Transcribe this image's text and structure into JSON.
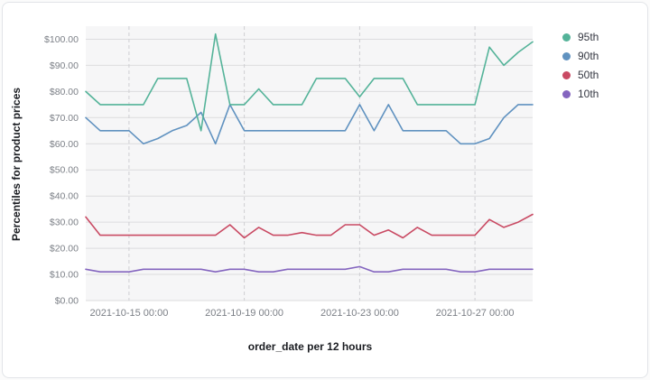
{
  "chart_data": {
    "type": "line",
    "title": "",
    "ylabel": "Percentiles for product prices",
    "xlabel": "order_date per 12 hours",
    "ylim": [
      0,
      105
    ],
    "x_count": 32,
    "x_interval": "12 hours",
    "grid": true,
    "legend_position": "right",
    "plot_bg": "#f6f6f7",
    "grid_color_h": "#dcdcde",
    "grid_color_v": "#cfcfd3",
    "y_ticks": [
      {
        "value": 0,
        "label": "$0.00"
      },
      {
        "value": 10,
        "label": "$10.00"
      },
      {
        "value": 20,
        "label": "$20.00"
      },
      {
        "value": 30,
        "label": "$30.00"
      },
      {
        "value": 40,
        "label": "$40.00"
      },
      {
        "value": 50,
        "label": "$50.00"
      },
      {
        "value": 60,
        "label": "$60.00"
      },
      {
        "value": 70,
        "label": "$70.00"
      },
      {
        "value": 80,
        "label": "$80.00"
      },
      {
        "value": 90,
        "label": "$90.00"
      },
      {
        "value": 100,
        "label": "$100.00"
      }
    ],
    "x_ticks": [
      {
        "index": 3,
        "label": "2021-10-15 00:00"
      },
      {
        "index": 11,
        "label": "2021-10-19 00:00"
      },
      {
        "index": 19,
        "label": "2021-10-23 00:00"
      },
      {
        "index": 27,
        "label": "2021-10-27 00:00"
      }
    ],
    "series": [
      {
        "name": "95th",
        "color": "#54B399",
        "values": [
          80,
          75,
          75,
          75,
          75,
          85,
          85,
          85,
          65,
          102,
          75,
          75,
          81,
          75,
          75,
          75,
          85,
          85,
          85,
          78,
          85,
          85,
          85,
          75,
          75,
          75,
          75,
          75,
          97,
          90,
          95,
          99
        ]
      },
      {
        "name": "90th",
        "color": "#6092C0",
        "values": [
          70,
          65,
          65,
          65,
          60,
          62,
          65,
          67,
          72,
          60,
          75,
          65,
          65,
          65,
          65,
          65,
          65,
          65,
          65,
          75,
          65,
          75,
          65,
          65,
          65,
          65,
          60,
          60,
          62,
          70,
          75,
          75
        ]
      },
      {
        "name": "50th",
        "color": "#C94A63",
        "values": [
          32,
          25,
          25,
          25,
          25,
          25,
          25,
          25,
          25,
          25,
          29,
          24,
          28,
          25,
          25,
          26,
          25,
          25,
          29,
          29,
          25,
          27,
          24,
          28,
          25,
          25,
          25,
          25,
          31,
          28,
          30,
          33
        ]
      },
      {
        "name": "10th",
        "color": "#8465BF",
        "values": [
          12,
          11,
          11,
          11,
          12,
          12,
          12,
          12,
          12,
          11,
          12,
          12,
          11,
          11,
          12,
          12,
          12,
          12,
          12,
          13,
          11,
          11,
          12,
          12,
          12,
          12,
          11,
          11,
          12,
          12,
          12,
          12
        ]
      }
    ]
  }
}
